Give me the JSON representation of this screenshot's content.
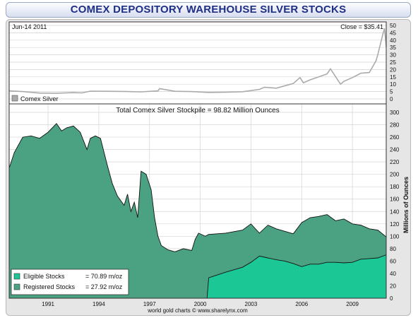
{
  "title": "COMEX DEPOSITORY WAREHOUSE SILVER STOCKS",
  "chart_data": [
    {
      "type": "line",
      "date_label": "Jun-14  2011",
      "close_label": "Close = $35.41",
      "legend": [
        {
          "name": "Comex Silver",
          "color": "#aaaaaa"
        }
      ],
      "xlim": [
        1989.2,
        2011.5
      ],
      "ylim": [
        0,
        50
      ],
      "yticks": [
        0,
        5,
        10,
        15,
        20,
        25,
        30,
        35,
        40,
        45,
        50
      ],
      "grid": true,
      "series": [
        {
          "name": "Comex Silver",
          "color": "#aaaaaa",
          "x": [
            1989.2,
            1990.0,
            1991.0,
            1992.0,
            1993.0,
            1993.5,
            1994.0,
            1995.0,
            1996.0,
            1997.0,
            1998.0,
            1998.1,
            1999.0,
            2000.0,
            2001.0,
            2002.0,
            2003.0,
            2004.0,
            2004.3,
            2005.0,
            2006.0,
            2006.4,
            2006.6,
            2007.0,
            2008.0,
            2008.2,
            2008.8,
            2009.0,
            2009.5,
            2010.0,
            2010.5,
            2010.9,
            2011.0,
            2011.3,
            2011.4,
            2011.5
          ],
          "y": [
            5.5,
            5.0,
            4.0,
            3.9,
            4.3,
            4.1,
            5.3,
            5.2,
            5.1,
            4.8,
            5.5,
            7.0,
            5.2,
            5.0,
            4.4,
            4.6,
            4.9,
            6.5,
            8.0,
            7.3,
            10.5,
            14.5,
            11.0,
            13.0,
            17.0,
            20.5,
            10.0,
            12.0,
            14.5,
            17.5,
            18.0,
            26.0,
            30.0,
            44.0,
            48.0,
            35.4
          ]
        }
      ]
    },
    {
      "type": "area",
      "title": "Total Comex Silver Stockpile = 98.82 Million Ounces",
      "ylabel": "Millions of Ounces",
      "xlim": [
        1989.2,
        2011.5
      ],
      "ylim": [
        0,
        300
      ],
      "xticks": [
        "1991",
        "1994",
        "1997",
        "2000",
        "2003",
        "2006",
        "2009"
      ],
      "yticks": [
        0,
        20,
        40,
        60,
        80,
        100,
        120,
        140,
        160,
        180,
        200,
        220,
        240,
        260,
        280,
        300
      ],
      "grid": true,
      "legend_position": "bottom-left",
      "series": [
        {
          "name": "Eligible Stocks",
          "legend_value": "= 70.89 m/oz",
          "color": "#1cc796",
          "x": [
            2000.9,
            2001.0,
            2002.0,
            2003.0,
            2003.5,
            2004.0,
            2004.5,
            2005.0,
            2005.5,
            2006.0,
            2006.5,
            2007.0,
            2007.5,
            2008.0,
            2008.5,
            2009.0,
            2009.5,
            2010.0,
            2010.5,
            2011.0,
            2011.5
          ],
          "y": [
            0,
            33,
            42,
            50,
            58,
            68,
            65,
            62,
            60,
            56,
            51,
            55,
            55,
            58,
            58,
            57,
            58,
            63,
            64,
            65,
            70
          ]
        },
        {
          "name": "Registered Stocks",
          "legend_value": "= 27.92 m/oz",
          "color": "#4aa283",
          "x": [
            1989.2,
            1989.5,
            1990.0,
            1990.5,
            1991.0,
            1991.5,
            1992.0,
            1992.3,
            1992.6,
            1993.0,
            1993.4,
            1993.8,
            1994.0,
            1994.3,
            1994.6,
            1995.0,
            1995.3,
            1995.6,
            1996.0,
            1996.2,
            1996.4,
            1996.6,
            1996.8,
            1997.0,
            1997.3,
            1997.6,
            1997.8,
            1998.0,
            1998.2,
            1998.6,
            1999.0,
            1999.5,
            2000.0,
            2000.2,
            2000.4,
            2000.8,
            2001.0,
            2002.0,
            2003.0,
            2003.5,
            2004.0,
            2004.5,
            2005.0,
            2005.5,
            2006.0,
            2006.5,
            2007.0,
            2007.5,
            2008.0,
            2008.5,
            2009.0,
            2009.5,
            2010.0,
            2010.5,
            2011.0,
            2011.5
          ],
          "y": [
            210,
            235,
            260,
            262,
            258,
            268,
            282,
            270,
            275,
            278,
            268,
            240,
            258,
            262,
            258,
            215,
            185,
            165,
            150,
            168,
            140,
            155,
            130,
            205,
            200,
            175,
            130,
            100,
            85,
            78,
            75,
            80,
            77,
            95,
            105,
            100,
            103,
            105,
            110,
            120,
            105,
            118,
            112,
            108,
            104,
            122,
            130,
            132,
            135,
            125,
            128,
            120,
            118,
            112,
            110,
            99
          ]
        }
      ],
      "footer": "world gold charts  ©  www.sharelynx.com"
    }
  ]
}
